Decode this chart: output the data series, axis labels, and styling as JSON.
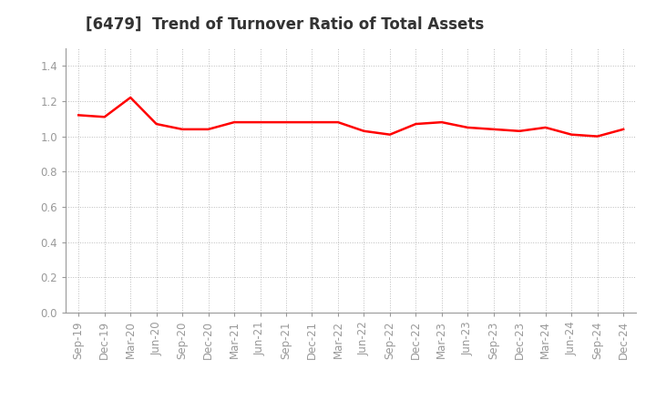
{
  "title": "[6479]  Trend of Turnover Ratio of Total Assets",
  "x_labels": [
    "Sep-19",
    "Dec-19",
    "Mar-20",
    "Jun-20",
    "Sep-20",
    "Dec-20",
    "Mar-21",
    "Jun-21",
    "Sep-21",
    "Dec-21",
    "Mar-22",
    "Jun-22",
    "Sep-22",
    "Dec-22",
    "Mar-23",
    "Jun-23",
    "Sep-23",
    "Dec-23",
    "Mar-24",
    "Jun-24",
    "Sep-24",
    "Dec-24"
  ],
  "y_values": [
    1.12,
    1.11,
    1.22,
    1.07,
    1.04,
    1.04,
    1.08,
    1.08,
    1.08,
    1.08,
    1.08,
    1.03,
    1.01,
    1.07,
    1.08,
    1.05,
    1.04,
    1.03,
    1.05,
    1.01,
    1.0,
    1.04
  ],
  "line_color": "#ff0000",
  "line_width": 1.8,
  "ylim": [
    0.0,
    1.5
  ],
  "yticks": [
    0.0,
    0.2,
    0.4,
    0.6,
    0.8,
    1.0,
    1.2,
    1.4
  ],
  "background_color": "#ffffff",
  "grid_color": "#bbbbbb",
  "title_fontsize": 12,
  "tick_fontsize": 8.5,
  "title_color": "#333333",
  "spine_color": "#999999"
}
